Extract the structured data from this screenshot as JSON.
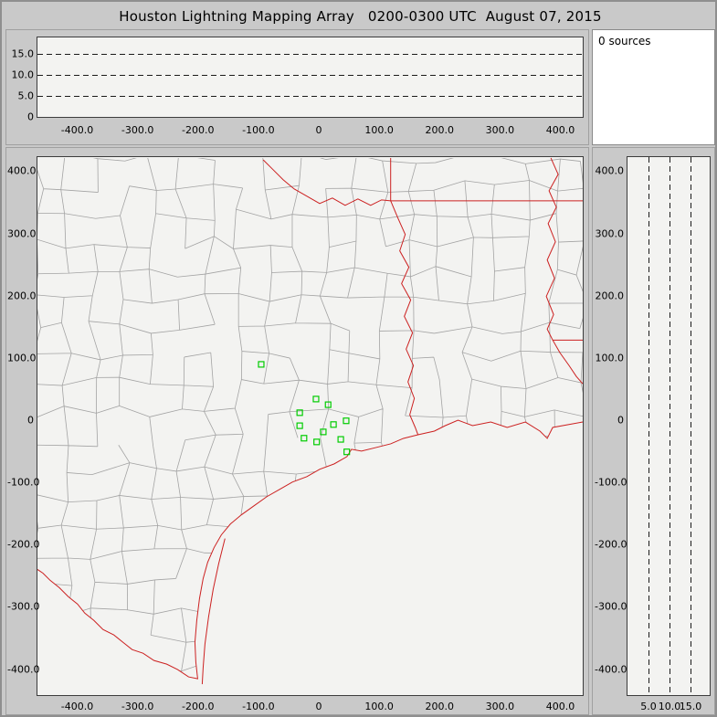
{
  "title": "Houston Lightning Mapping Array   0200-0300 UTC  August 07, 2015",
  "sources": {
    "label": "0 sources",
    "count": 0
  },
  "colors": {
    "state_border": "#cc2020",
    "county_line": "#a3a3a3",
    "station_marker": "#00cc00",
    "plot_bg": "#f3f3f1",
    "gridline": "#1a1a1a"
  },
  "axes": {
    "ew_x_tick_labels": [
      "-400.0",
      "-300.0",
      "-200.0",
      "-100.0",
      "0",
      "100.0",
      "200.0",
      "300.0",
      "400.0"
    ],
    "alt_y_tick_labels": [
      "15.0",
      "10.0",
      "5.0",
      "0"
    ],
    "map_y_tick_labels": [
      "400.0",
      "300.0",
      "200.0",
      "100.0",
      "0",
      "-100.0",
      "-200.0",
      "-300.0",
      "-400.0"
    ],
    "alt_x_tick_labels": [
      "5.0",
      "10.0",
      "15.0"
    ]
  },
  "chart_data": [
    {
      "type": "scatter",
      "name": "altitude-vs-east-west",
      "title": "",
      "xlabel": "",
      "ylabel": "",
      "x_ticks": [
        -400,
        -300,
        -200,
        -100,
        0,
        100,
        200,
        300,
        400
      ],
      "y_ticks": [
        0,
        5,
        10,
        15
      ],
      "x_range": [
        -465,
        440
      ],
      "y_range": [
        0,
        19
      ],
      "dashed_y_gridlines": [
        5,
        10,
        15
      ],
      "points": []
    },
    {
      "type": "scatter",
      "name": "plan-view-map",
      "title": "",
      "xlabel": "",
      "ylabel": "",
      "x_ticks": [
        -400,
        -300,
        -200,
        -100,
        0,
        100,
        200,
        300,
        400
      ],
      "y_ticks": [
        400,
        300,
        200,
        100,
        0,
        -100,
        -200,
        -300,
        -400
      ],
      "x_range": [
        -465,
        440
      ],
      "y_range": [
        -432,
        424
      ],
      "points": [],
      "station_markers_km": [
        [
          -94,
          90
        ],
        [
          -3,
          34
        ],
        [
          -30,
          12
        ],
        [
          17,
          25
        ],
        [
          -30,
          -9
        ],
        [
          -23,
          -29
        ],
        [
          -2,
          -35
        ],
        [
          9,
          -19
        ],
        [
          26,
          -7
        ],
        [
          47,
          -1
        ],
        [
          38,
          -31
        ],
        [
          48,
          -51
        ]
      ]
    },
    {
      "type": "scatter",
      "name": "altitude-vs-north-south",
      "title": "",
      "xlabel": "",
      "ylabel": "",
      "x_ticks": [
        5,
        10,
        15
      ],
      "y_ticks": [
        400,
        300,
        200,
        100,
        0,
        -100,
        -200,
        -300,
        -400
      ],
      "x_range": [
        0,
        19
      ],
      "y_range": [
        -432,
        424
      ],
      "dashed_x_gridlines": [
        5,
        10,
        15
      ],
      "points": []
    }
  ]
}
